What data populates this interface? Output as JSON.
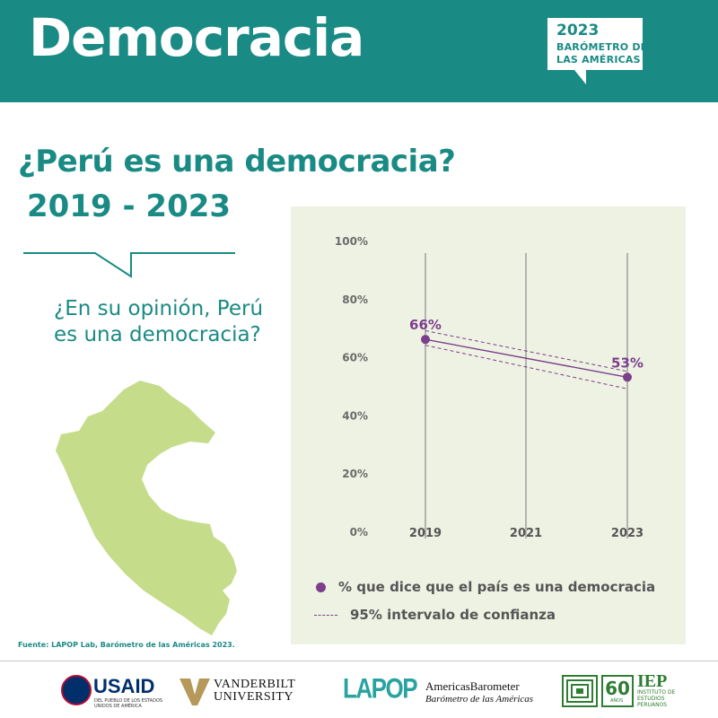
{
  "header": {
    "title": "Democracia",
    "badge_year": "2023",
    "badge_line1": "BARÓMETRO DE",
    "badge_line2": "LAS AMÉRICAS"
  },
  "question": "¿Perú es una democracia?",
  "years_range": "2019 - 2023",
  "subquestion": "¿En su opinión, Perú es una democracia?",
  "source": "Fuente: LAPOP Lab, Barómetro de las Américas 2023.",
  "colors": {
    "teal": "#1a8a84",
    "purple": "#7b3f8c",
    "panel": "#eef2e3",
    "map": "#c5dc8a"
  },
  "chart_data": {
    "type": "line",
    "x": [
      "2019",
      "2021",
      "2023"
    ],
    "y_ticks": [
      "0%",
      "20%",
      "40%",
      "60%",
      "80%",
      "100%"
    ],
    "ylim": [
      0,
      100
    ],
    "series": [
      {
        "name": "% que dice que el país es una democracia",
        "points": [
          {
            "x": "2019",
            "y": 66,
            "label": "66%"
          },
          {
            "x": "2023",
            "y": 53,
            "label": "53%"
          }
        ],
        "ci_upper": [
          69,
          55
        ],
        "ci_lower": [
          64,
          49
        ]
      }
    ],
    "legend": {
      "series_label": "% que dice que el país es una democracia",
      "ci_label": "95% intervalo de confianza",
      "position": "bottom"
    }
  },
  "logos": {
    "usaid": "USAID",
    "usaid_sub": "DEL PUEBLO DE LOS ESTADOS UNIDOS DE AMÉRICA",
    "vanderbilt_line1": "VANDERBILT",
    "vanderbilt_line2": "UNIVERSITY",
    "lapop": "LAPOP",
    "ab_line1": "AmericasBarometer",
    "ab_line2": "Barómetro de las Américas",
    "iep_60": "60",
    "iep_60_sub": "AÑOS",
    "iep": "IEP",
    "iep_sub": "INSTITUTO DE ESTUDIOS PERUANOS"
  }
}
